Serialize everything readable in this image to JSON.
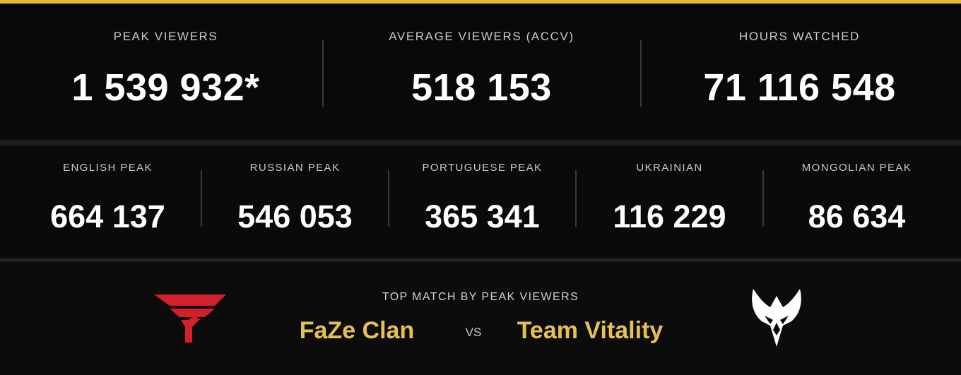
{
  "theme": {
    "accent": "#e8b929",
    "team_text": "#e6c055",
    "faze_red": "#d4202a",
    "background": "#0b0a0a"
  },
  "headline_stats": [
    {
      "label": "PEAK VIEWERS",
      "value": "1 539 932*"
    },
    {
      "label": "AVERAGE VIEWERS (ACCV)",
      "value": "518 153"
    },
    {
      "label": "HOURS WATCHED",
      "value": "71 116 548"
    }
  ],
  "language_stats": [
    {
      "label": "ENGLISH PEAK",
      "value": "664 137"
    },
    {
      "label": "RUSSIAN PEAK",
      "value": "546 053"
    },
    {
      "label": "PORTUGUESE PEAK",
      "value": "365 341"
    },
    {
      "label": "UKRAINIAN",
      "value": "116 229"
    },
    {
      "label": "MONGOLIAN PEAK",
      "value": "86 634"
    }
  ],
  "top_match": {
    "label": "TOP MATCH BY PEAK VIEWERS",
    "team_a": "FaZe Clan",
    "vs": "VS",
    "team_b": "Team Vitality",
    "team_a_logo_icon": "faze-clan-logo-icon",
    "team_b_logo_icon": "team-vitality-logo-icon"
  }
}
